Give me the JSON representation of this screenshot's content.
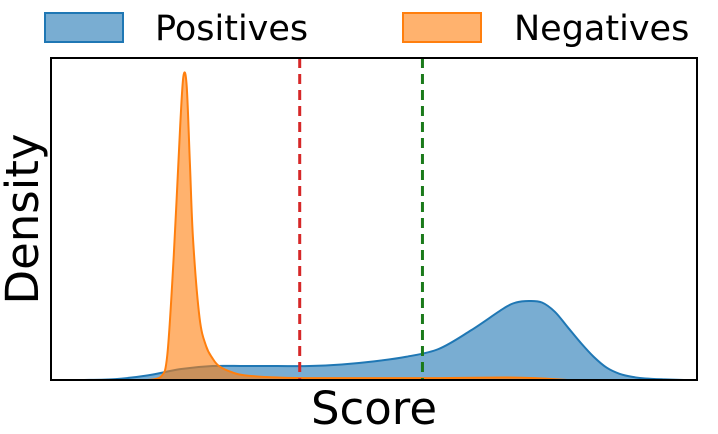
{
  "chart_data": {
    "type": "area",
    "title": "",
    "xlabel": "Score",
    "ylabel": "Density",
    "xlim": [
      0,
      1
    ],
    "ylim": [
      0,
      1
    ],
    "x_ticks_shown": false,
    "y_ticks_shown": false,
    "grid": false,
    "legend_position": "top",
    "series": [
      {
        "name": "Positives",
        "color": "#1f77b4",
        "fill_opacity": 0.6,
        "x": [
          0.05,
          0.1,
          0.15,
          0.2,
          0.25,
          0.3,
          0.35,
          0.4,
          0.45,
          0.5,
          0.55,
          0.6,
          0.65,
          0.7,
          0.72,
          0.74,
          0.76,
          0.78,
          0.8,
          0.82,
          0.84,
          0.86,
          0.88,
          0.9,
          0.92,
          0.95,
          0.98
        ],
        "y": [
          0.0,
          0.003,
          0.015,
          0.035,
          0.045,
          0.045,
          0.045,
          0.045,
          0.05,
          0.06,
          0.075,
          0.1,
          0.16,
          0.23,
          0.25,
          0.255,
          0.25,
          0.22,
          0.17,
          0.12,
          0.075,
          0.04,
          0.02,
          0.01,
          0.005,
          0.002,
          0.0
        ]
      },
      {
        "name": "Negatives",
        "color": "#ff7f0e",
        "fill_opacity": 0.6,
        "x": [
          0.15,
          0.17,
          0.18,
          0.19,
          0.2,
          0.205,
          0.21,
          0.215,
          0.22,
          0.23,
          0.24,
          0.25,
          0.26,
          0.28,
          0.3,
          0.35,
          0.4,
          0.5,
          0.6,
          0.7,
          0.75,
          0.8
        ],
        "y": [
          0.0,
          0.01,
          0.08,
          0.4,
          0.82,
          0.98,
          0.95,
          0.7,
          0.45,
          0.2,
          0.11,
          0.07,
          0.045,
          0.025,
          0.015,
          0.008,
          0.006,
          0.006,
          0.006,
          0.008,
          0.006,
          0.0
        ]
      }
    ],
    "vertical_lines": [
      {
        "x": 0.385,
        "color": "#d62728",
        "style": "dashed"
      },
      {
        "x": 0.575,
        "color": "#1a7a1a",
        "style": "dashed"
      }
    ]
  }
}
